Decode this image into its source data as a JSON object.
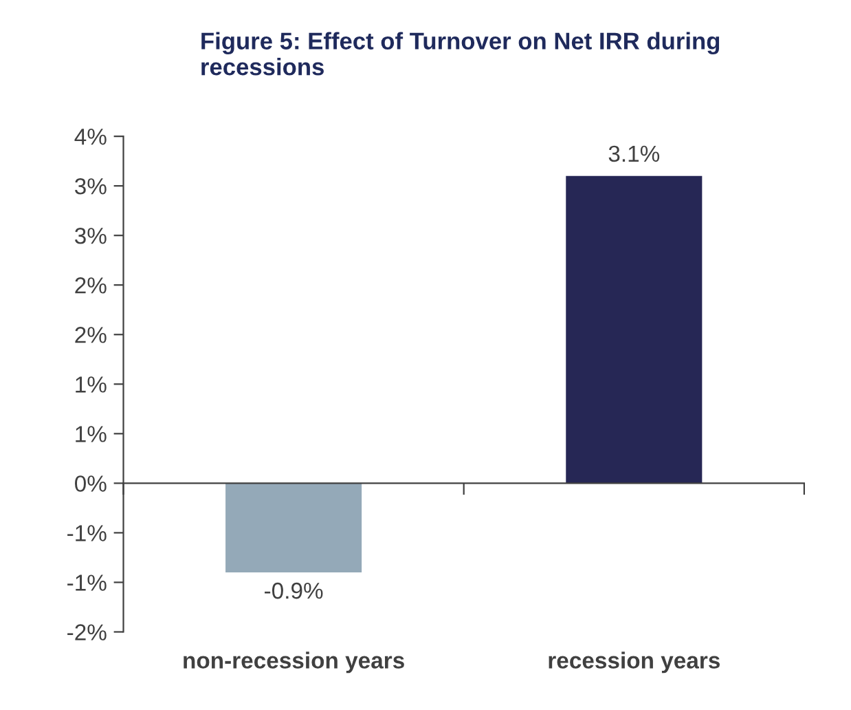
{
  "chart_data": {
    "type": "bar",
    "title": "Figure 5: Effect of Turnover on Net IRR during recessions",
    "categories": [
      "non-recession years",
      "recession years"
    ],
    "values": [
      -0.9,
      3.1
    ],
    "colors": [
      "#94a9b8",
      "#262755"
    ],
    "value_labels": [
      "-0.9%",
      "3.1%"
    ],
    "ylim": [
      -1.5,
      3.5
    ],
    "yticks": [
      {
        "value": -1.5,
        "label": "-2%"
      },
      {
        "value": -1,
        "label": "-1%"
      },
      {
        "value": -0.5,
        "label": "-1%"
      },
      {
        "value": 0,
        "label": "0%"
      },
      {
        "value": 0.5,
        "label": "1%"
      },
      {
        "value": 1,
        "label": "1%"
      },
      {
        "value": 1.5,
        "label": "2%"
      },
      {
        "value": 2,
        "label": "2%"
      },
      {
        "value": 2.5,
        "label": "3%"
      },
      {
        "value": 3,
        "label": "3%"
      },
      {
        "value": 3.5,
        "label": "4%"
      }
    ],
    "legend": false
  }
}
